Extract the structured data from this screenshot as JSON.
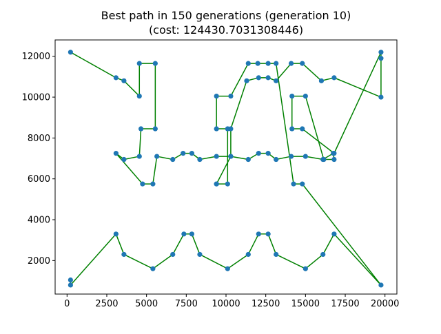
{
  "chart_data": {
    "type": "line",
    "title": "Best path in 150 generations (generation 10)",
    "subtitle": "(cost: 124430.7031308446)",
    "xlabel": "",
    "ylabel": "",
    "xlim": [
      -750,
      20750
    ],
    "ylim": [
      360,
      12800
    ],
    "xticks": [
      0,
      2500,
      5000,
      7500,
      10000,
      12500,
      15000,
      17500,
      20000
    ],
    "yticks": [
      2000,
      4000,
      6000,
      8000,
      10000,
      12000
    ],
    "grid": false,
    "line_color": "#008000",
    "marker_color": "#1f77b4",
    "path": {
      "x": [
        220,
        3080,
        3580,
        4550,
        4550,
        5550,
        5550,
        4650,
        4550,
        3580,
        3080,
        4750,
        5400,
        5650,
        6650,
        7300,
        7850,
        8350,
        9400,
        10300,
        10300,
        11300,
        12050,
        12650,
        13150,
        14100,
        14800,
        16000,
        16800,
        19750,
        19750,
        19750,
        16800,
        14800,
        14150,
        14150,
        15000,
        16150,
        16800,
        16750,
        16100,
        15000,
        14100,
        13150,
        12650,
        12050,
        11400,
        10300,
        9400,
        9400,
        10100,
        10100,
        9400,
        9400,
        10300,
        11400,
        12000,
        12650,
        13150,
        14250,
        14800,
        19750,
        16800,
        16100,
        15000,
        13150,
        12650,
        12050,
        11400,
        10100,
        8350,
        7850,
        7350,
        6650,
        5400,
        3580,
        3080,
        220,
        220
      ],
      "y": [
        12200,
        10950,
        10800,
        10050,
        11650,
        11650,
        8450,
        8450,
        7100,
        6950,
        7250,
        5750,
        5750,
        7100,
        6950,
        7250,
        7250,
        6950,
        7100,
        7100,
        8450,
        10800,
        10950,
        10950,
        10800,
        11650,
        11650,
        10800,
        10950,
        10000,
        11900,
        12200,
        7250,
        8450,
        8450,
        10050,
        10050,
        6950,
        6950,
        7250,
        6950,
        7100,
        7100,
        6950,
        7250,
        7250,
        6950,
        7100,
        5750,
        5750,
        5750,
        8450,
        8450,
        10050,
        10050,
        11650,
        11650,
        11650,
        11650,
        5750,
        5750,
        800,
        3300,
        2300,
        1600,
        2300,
        3300,
        3300,
        2300,
        1600,
        2300,
        3300,
        3300,
        2300,
        1600,
        2300,
        3300,
        800,
        1050
      ]
    }
  }
}
